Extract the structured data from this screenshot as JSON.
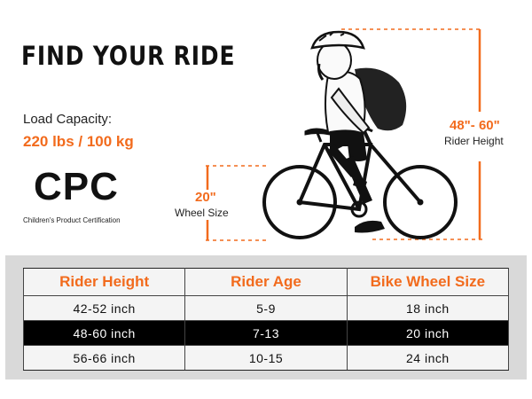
{
  "headline": "FIND YOUR RIDE",
  "load_capacity": {
    "label": "Load Capacity:",
    "value": "220 lbs / 100 kg"
  },
  "certification": {
    "mark": "CPC",
    "caption": "Children's Product Certification"
  },
  "rider_height": {
    "value": "48\"- 60\"",
    "label": "Rider Height"
  },
  "wheel_size": {
    "value": "20\"",
    "label": "Wheel Size"
  },
  "colors": {
    "accent": "#f26b1d",
    "text": "#111111",
    "table_bg": "#d9d9d9",
    "highlight_row": "#000000"
  },
  "size_table": {
    "headers": [
      "Rider Height",
      "Rider Age",
      "Bike Wheel Size"
    ],
    "rows": [
      [
        "42-52 inch",
        "5-9",
        "18 inch"
      ],
      [
        "48-60 inch",
        "7-13",
        "20 inch"
      ],
      [
        "56-66 inch",
        "10-15",
        "24 inch"
      ]
    ],
    "highlighted_row": 1
  }
}
